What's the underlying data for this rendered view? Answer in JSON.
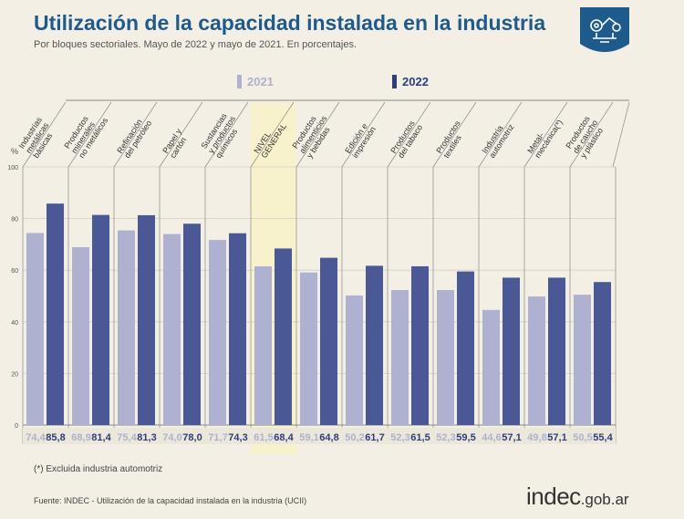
{
  "header": {
    "title": "Utilización de la capacidad instalada en la industria",
    "subtitle": "Por bloques sectoriales. Mayo de 2022 y mayo de 2021. En porcentajes."
  },
  "legend": {
    "series_2021": "2021",
    "series_2022": "2022"
  },
  "colors": {
    "title": "#1e5b8c",
    "bar_2021": "#aeb1cf",
    "bar_2022": "#4a5896",
    "highlight": "#f7f2cc",
    "logo_bg": "#1e5b8c"
  },
  "footnote": "(*) Excluida industria automotriz",
  "source": "Fuente: INDEC - Utilización de la capacidad instalada en la industria (UCII)",
  "brand": {
    "main": "indec",
    "domain": ".gob.ar"
  },
  "chart_data": {
    "type": "bar",
    "ylabel": "%",
    "ylim": [
      0,
      100
    ],
    "yticks": [
      0,
      20,
      40,
      60,
      80,
      100
    ],
    "grid": true,
    "legend_position": "top",
    "highlighted_category": "NIVEL GENERAL",
    "categories": [
      "Industrias metálicas básicas",
      "Productos minerales no metálicos",
      "Refinación del petróleo",
      "Papel y cartón",
      "Sustancias y productos químicos",
      "NIVEL GENERAL",
      "Productos alimenticios y bebidas",
      "Edición e impresión",
      "Productos del tabaco",
      "Productos textiles",
      "Industria automotriz",
      "Metal-mecánica(*)",
      "Productos de caucho y plástico"
    ],
    "category_lines": [
      [
        "Industrias",
        "metálicas",
        "básicas"
      ],
      [
        "Productos",
        "minerales",
        "no metálicos"
      ],
      [
        "Refinación",
        "del petróleo"
      ],
      [
        "Papel y",
        "cartón"
      ],
      [
        "Sustancias",
        "y productos",
        "químicos"
      ],
      [
        "NIVEL",
        "GENERAL"
      ],
      [
        "Productos",
        "alimenticios",
        "y bebidas"
      ],
      [
        "Edición e",
        "impresión"
      ],
      [
        "Productos",
        "del tabaco"
      ],
      [
        "Productos",
        "textiles"
      ],
      [
        "Industria",
        "automotriz"
      ],
      [
        "Metal-",
        "mecánica(*)"
      ],
      [
        "Productos",
        "de caucho",
        "y plástico"
      ]
    ],
    "series": [
      {
        "name": "2021",
        "values": [
          74.4,
          68.9,
          75.4,
          74.0,
          71.7,
          61.5,
          59.1,
          50.2,
          52.3,
          52.3,
          44.6,
          49.8,
          50.5
        ],
        "labels": [
          "74,4",
          "68,9",
          "75,4",
          "74,0",
          "71,7",
          "61,5",
          "59,1",
          "50,2",
          "52,3",
          "52,3",
          "44,6",
          "49,8",
          "50,5"
        ]
      },
      {
        "name": "2022",
        "values": [
          85.8,
          81.4,
          81.3,
          78.0,
          74.3,
          68.4,
          64.8,
          61.7,
          61.5,
          59.5,
          57.1,
          57.1,
          55.4
        ],
        "labels": [
          "85,8",
          "81,4",
          "81,3",
          "78,0",
          "74,3",
          "68,4",
          "64,8",
          "61,7",
          "61,5",
          "59,5",
          "57,1",
          "57,1",
          "55,4"
        ]
      }
    ]
  }
}
